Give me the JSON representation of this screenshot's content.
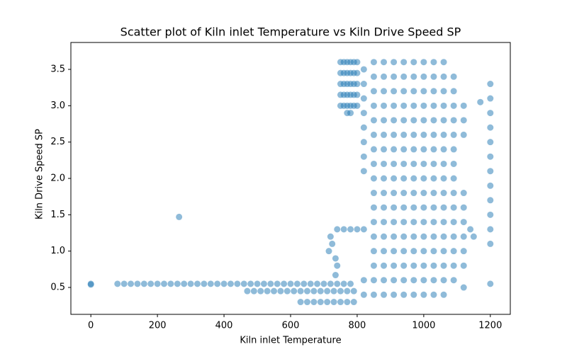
{
  "chart_data": {
    "type": "scatter",
    "title": "Scatter plot of Kiln inlet Temperature vs Kiln Drive Speed SP",
    "x_label": "Kiln inlet Temperature",
    "y_label": "Kiln Drive Speed SP",
    "color": "#1f77b4",
    "xlim": [
      -60,
      1260
    ],
    "ylim": [
      0.13,
      3.87
    ],
    "xticks": [
      0,
      200,
      400,
      600,
      800,
      1000,
      1200
    ],
    "yticks": [
      0.5,
      {
        "value": 1,
        "label": "1.0"
      },
      1.5,
      {
        "value": 2,
        "label": "2.0"
      },
      2.5,
      {
        "value": 3,
        "label": "3.0"
      },
      3.5
    ],
    "x": [
      0,
      0,
      80,
      100,
      120,
      140,
      160,
      180,
      200,
      220,
      240,
      260,
      280,
      300,
      320,
      340,
      360,
      380,
      400,
      420,
      440,
      460,
      480,
      500,
      520,
      540,
      560,
      580,
      600,
      620,
      640,
      660,
      680,
      700,
      720,
      740,
      760,
      780,
      470,
      490,
      510,
      530,
      550,
      570,
      590,
      610,
      630,
      650,
      670,
      690,
      710,
      730,
      750,
      770,
      790,
      630,
      650,
      670,
      690,
      710,
      730,
      750,
      770,
      790,
      265,
      740,
      760,
      780,
      800,
      820,
      720,
      715,
      725,
      735,
      740,
      735,
      750,
      750,
      750,
      750,
      750,
      760,
      760,
      760,
      760,
      760,
      770,
      770,
      770,
      770,
      770,
      780,
      780,
      780,
      780,
      780,
      790,
      790,
      790,
      790,
      790,
      800,
      800,
      800,
      800,
      800,
      770,
      780,
      820,
      820,
      820,
      820,
      820,
      820,
      820,
      820,
      820,
      820,
      850,
      850,
      850,
      850,
      850,
      850,
      850,
      850,
      850,
      850,
      850,
      850,
      850,
      850,
      850,
      850,
      850,
      880,
      880,
      880,
      880,
      880,
      880,
      880,
      880,
      880,
      880,
      880,
      880,
      880,
      880,
      880,
      880,
      880,
      910,
      910,
      910,
      910,
      910,
      910,
      910,
      910,
      910,
      910,
      910,
      910,
      910,
      910,
      910,
      910,
      910,
      940,
      940,
      940,
      940,
      940,
      940,
      940,
      940,
      940,
      940,
      940,
      940,
      940,
      940,
      940,
      940,
      940,
      970,
      970,
      970,
      970,
      970,
      970,
      970,
      970,
      970,
      970,
      970,
      970,
      970,
      970,
      970,
      970,
      970,
      1000,
      1000,
      1000,
      1000,
      1000,
      1000,
      1000,
      1000,
      1000,
      1000,
      1000,
      1000,
      1000,
      1000,
      1000,
      1000,
      1000,
      1030,
      1030,
      1030,
      1030,
      1030,
      1030,
      1030,
      1030,
      1030,
      1030,
      1030,
      1030,
      1030,
      1030,
      1030,
      1030,
      1030,
      1060,
      1060,
      1060,
      1060,
      1060,
      1060,
      1060,
      1060,
      1060,
      1060,
      1060,
      1060,
      1060,
      1060,
      1060,
      1060,
      1060,
      1090,
      1090,
      1090,
      1090,
      1090,
      1090,
      1090,
      1090,
      1090,
      1090,
      1090,
      1090,
      1090,
      1090,
      1090,
      1120,
      1120,
      1120,
      1120,
      1120,
      1120,
      1120,
      1120,
      1120,
      1120,
      1200,
      1200,
      1200,
      1200,
      1200,
      1200,
      1200,
      1200,
      1200,
      1200,
      1200,
      1200,
      1200,
      1150,
      1170,
      1140
    ],
    "y": [
      0.55,
      0.54,
      0.55,
      0.55,
      0.55,
      0.55,
      0.55,
      0.55,
      0.55,
      0.55,
      0.55,
      0.55,
      0.55,
      0.55,
      0.55,
      0.55,
      0.55,
      0.55,
      0.55,
      0.55,
      0.55,
      0.55,
      0.55,
      0.55,
      0.55,
      0.55,
      0.55,
      0.55,
      0.55,
      0.55,
      0.55,
      0.55,
      0.55,
      0.55,
      0.55,
      0.55,
      0.55,
      0.55,
      0.45,
      0.45,
      0.45,
      0.45,
      0.45,
      0.45,
      0.45,
      0.45,
      0.45,
      0.45,
      0.45,
      0.45,
      0.45,
      0.45,
      0.45,
      0.45,
      0.45,
      0.3,
      0.3,
      0.3,
      0.3,
      0.3,
      0.3,
      0.3,
      0.3,
      0.3,
      1.47,
      1.3,
      1.3,
      1.3,
      1.3,
      1.3,
      1.2,
      1.0,
      1.1,
      0.9,
      0.8,
      0.67,
      3.6,
      3.45,
      3.3,
      3.15,
      3.0,
      3.6,
      3.45,
      3.3,
      3.15,
      3.0,
      3.6,
      3.45,
      3.3,
      3.15,
      3.0,
      3.6,
      3.45,
      3.3,
      3.15,
      3.0,
      3.6,
      3.45,
      3.3,
      3.15,
      3.0,
      3.6,
      3.45,
      3.3,
      3.15,
      3.0,
      2.9,
      2.9,
      0.4,
      0.6,
      2.1,
      2.3,
      2.5,
      2.7,
      2.9,
      3.1,
      3.3,
      3.5,
      0.4,
      0.6,
      0.8,
      1.0,
      1.2,
      1.4,
      1.6,
      1.8,
      2.0,
      2.2,
      2.4,
      2.6,
      2.8,
      3.0,
      3.2,
      3.4,
      3.6,
      0.4,
      0.6,
      0.8,
      1.0,
      1.2,
      1.4,
      1.6,
      1.8,
      2.0,
      2.2,
      2.4,
      2.6,
      2.8,
      3.0,
      3.2,
      3.4,
      3.6,
      0.4,
      0.6,
      0.8,
      1.0,
      1.2,
      1.4,
      1.6,
      1.8,
      2.0,
      2.2,
      2.4,
      2.6,
      2.8,
      3.0,
      3.2,
      3.4,
      3.6,
      0.4,
      0.6,
      0.8,
      1.0,
      1.2,
      1.4,
      1.6,
      1.8,
      2.0,
      2.2,
      2.4,
      2.6,
      2.8,
      3.0,
      3.2,
      3.4,
      3.6,
      0.4,
      0.6,
      0.8,
      1.0,
      1.2,
      1.4,
      1.6,
      1.8,
      2.0,
      2.2,
      2.4,
      2.6,
      2.8,
      3.0,
      3.2,
      3.4,
      3.6,
      0.4,
      0.6,
      0.8,
      1.0,
      1.2,
      1.4,
      1.6,
      1.8,
      2.0,
      2.2,
      2.4,
      2.6,
      2.8,
      3.0,
      3.2,
      3.4,
      3.6,
      0.4,
      0.6,
      0.8,
      1.0,
      1.2,
      1.4,
      1.6,
      1.8,
      2.0,
      2.2,
      2.4,
      2.6,
      2.8,
      3.0,
      3.2,
      3.4,
      3.6,
      0.4,
      0.6,
      0.8,
      1.0,
      1.2,
      1.4,
      1.6,
      1.8,
      2.0,
      2.2,
      2.4,
      2.6,
      2.8,
      3.0,
      3.2,
      3.4,
      3.6,
      0.6,
      0.8,
      1.0,
      1.2,
      1.4,
      1.6,
      1.8,
      2.0,
      2.2,
      2.4,
      2.6,
      2.8,
      3.0,
      3.2,
      3.4,
      0.5,
      0.8,
      1.0,
      1.2,
      1.4,
      1.6,
      1.8,
      2.6,
      2.8,
      3.0,
      0.55,
      1.1,
      1.3,
      1.5,
      1.7,
      1.9,
      2.1,
      2.3,
      2.5,
      2.7,
      2.9,
      3.1,
      3.3,
      1.2,
      3.05,
      1.3
    ]
  }
}
